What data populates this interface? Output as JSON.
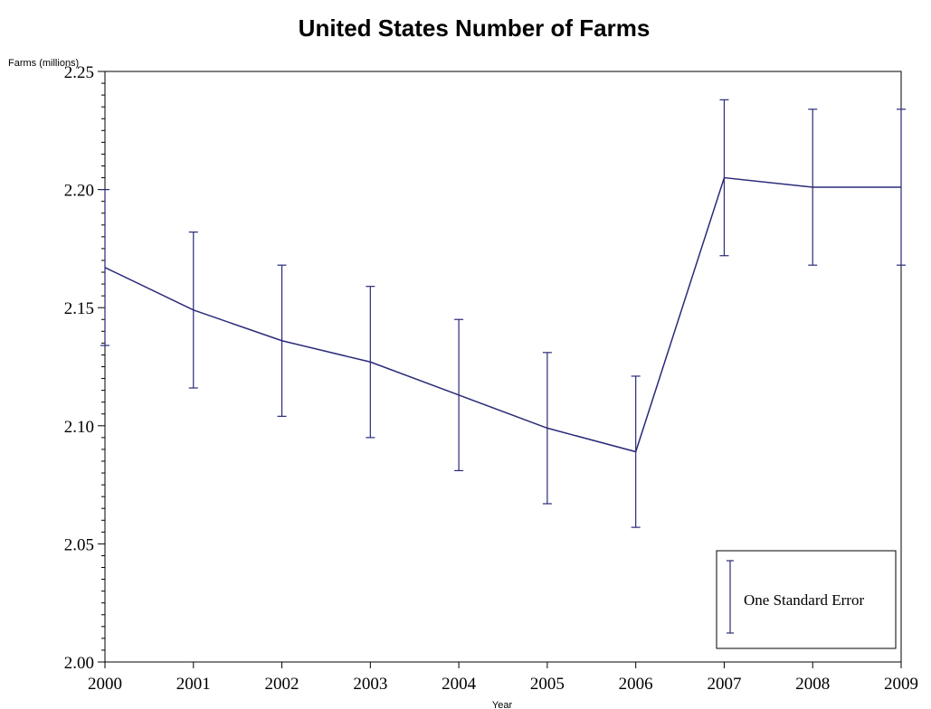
{
  "chart_data": {
    "type": "line",
    "title": "United States Number of Farms",
    "xlabel": "Year",
    "ylabel": "Farms (millions)",
    "x": [
      2000,
      2001,
      2002,
      2003,
      2004,
      2005,
      2006,
      2007,
      2008,
      2009
    ],
    "xlim": [
      2000,
      2009
    ],
    "ylim": [
      2.0,
      2.25
    ],
    "x_tick_labels": [
      "2000",
      "2001",
      "2002",
      "2003",
      "2004",
      "2005",
      "2006",
      "2007",
      "2008",
      "2009"
    ],
    "y_tick_labels": [
      "2.00",
      "2.05",
      "2.10",
      "2.15",
      "2.20",
      "2.25"
    ],
    "y_ticks": [
      2.0,
      2.05,
      2.1,
      2.15,
      2.2,
      2.25
    ],
    "series": [
      {
        "values": [
          2.167,
          2.149,
          2.136,
          2.127,
          2.113,
          2.099,
          2.089,
          2.205,
          2.201,
          2.201
        ],
        "error": [
          0.033,
          0.033,
          0.032,
          0.032,
          0.032,
          0.032,
          0.032,
          0.033,
          0.033,
          0.033
        ]
      }
    ],
    "grid": false,
    "legend": {
      "position": "bottom-right",
      "label": "One Standard Error"
    },
    "color": "#2a2a7a"
  }
}
